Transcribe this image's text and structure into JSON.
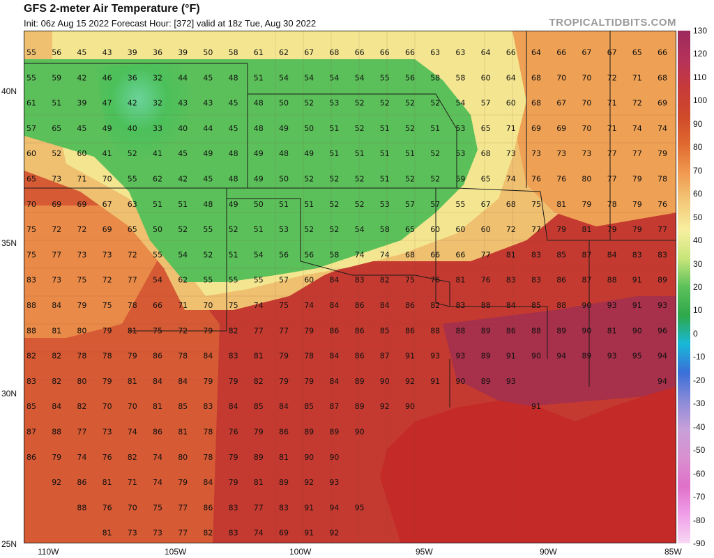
{
  "header": {
    "title": "GFS 2-meter Air Temperature (°F)",
    "subtitle": "Init: 06z Aug 15 2022   Forecast Hour: [372]   valid at 18z Tue, Aug 30 2022",
    "brand": "TROPICALTIDBITS.COM"
  },
  "axes": {
    "lat_labels": [
      "40N",
      "35N",
      "30N",
      "25N"
    ],
    "lon_labels": [
      "110W",
      "105W",
      "100W",
      "95W",
      "90W",
      "85W"
    ]
  },
  "colorbar": {
    "labels": [
      "130",
      "120",
      "110",
      "100",
      "90",
      "80",
      "70",
      "60",
      "50",
      "40",
      "30",
      "20",
      "10",
      "0",
      "-10",
      "-20",
      "-30",
      "-40",
      "-50",
      "-60",
      "-70",
      "-80",
      "-90"
    ],
    "stops": [
      "#9c2a5c",
      "#b5325a",
      "#c73a3a",
      "#cf4a2a",
      "#e06a30",
      "#f09a50",
      "#f3c878",
      "#f8efa0",
      "#c8e67a",
      "#5cc05a",
      "#2ea84a",
      "#18b8d8",
      "#3a6fd8",
      "#8a8ad8",
      "#c8a0d8",
      "#d890d0",
      "#e070c8",
      "#f0a0e8",
      "#f8d8f4"
    ]
  },
  "map": {
    "rows": [
      [
        "55",
        "56",
        "45",
        "43",
        "39",
        "36",
        "39",
        "50",
        "58",
        "61",
        "62",
        "67",
        "68",
        "66",
        "66",
        "66",
        "63",
        "63",
        "64",
        "66",
        "64",
        "66",
        "67",
        "67",
        "65",
        "66"
      ],
      [
        "55",
        "59",
        "42",
        "46",
        "36",
        "32",
        "44",
        "45",
        "48",
        "51",
        "54",
        "54",
        "54",
        "54",
        "55",
        "56",
        "58",
        "58",
        "60",
        "64",
        "68",
        "70",
        "70",
        "72",
        "71",
        "68"
      ],
      [
        "61",
        "51",
        "39",
        "47",
        "42",
        "32",
        "43",
        "43",
        "45",
        "48",
        "50",
        "52",
        "53",
        "52",
        "52",
        "52",
        "52",
        "54",
        "57",
        "60",
        "68",
        "67",
        "70",
        "71",
        "72",
        "69"
      ],
      [
        "57",
        "65",
        "45",
        "49",
        "40",
        "33",
        "40",
        "44",
        "45",
        "48",
        "49",
        "50",
        "51",
        "52",
        "51",
        "52",
        "51",
        "53",
        "65",
        "71",
        "69",
        "69",
        "70",
        "71",
        "74",
        "74"
      ],
      [
        "60",
        "52",
        "60",
        "41",
        "52",
        "41",
        "45",
        "49",
        "48",
        "49",
        "48",
        "49",
        "51",
        "51",
        "51",
        "51",
        "52",
        "53",
        "68",
        "73",
        "73",
        "73",
        "73",
        "77",
        "77",
        "79"
      ],
      [
        "65",
        "73",
        "71",
        "70",
        "55",
        "62",
        "42",
        "45",
        "48",
        "49",
        "50",
        "52",
        "52",
        "52",
        "51",
        "52",
        "52",
        "59",
        "65",
        "74",
        "76",
        "76",
        "80",
        "77",
        "79",
        "78"
      ],
      [
        "70",
        "69",
        "69",
        "67",
        "63",
        "51",
        "51",
        "48",
        "49",
        "50",
        "51",
        "51",
        "52",
        "52",
        "53",
        "57",
        "57",
        "55",
        "67",
        "68",
        "75",
        "81",
        "79",
        "78",
        "79",
        "76"
      ],
      [
        "75",
        "72",
        "72",
        "69",
        "65",
        "50",
        "52",
        "55",
        "52",
        "51",
        "53",
        "52",
        "52",
        "54",
        "58",
        "65",
        "60",
        "60",
        "60",
        "72",
        "77",
        "79",
        "81",
        "79",
        "79",
        "77"
      ],
      [
        "75",
        "77",
        "73",
        "73",
        "72",
        "55",
        "54",
        "52",
        "51",
        "54",
        "56",
        "56",
        "58",
        "74",
        "74",
        "68",
        "66",
        "66",
        "77",
        "81",
        "83",
        "85",
        "87",
        "84",
        "83",
        "83"
      ],
      [
        "83",
        "73",
        "75",
        "72",
        "77",
        "54",
        "62",
        "55",
        "55",
        "55",
        "57",
        "60",
        "84",
        "83",
        "82",
        "75",
        "76",
        "81",
        "76",
        "83",
        "83",
        "86",
        "87",
        "88",
        "91",
        "89"
      ],
      [
        "88",
        "84",
        "79",
        "75",
        "78",
        "66",
        "71",
        "70",
        "75",
        "74",
        "75",
        "74",
        "84",
        "86",
        "84",
        "86",
        "82",
        "83",
        "88",
        "84",
        "85",
        "88",
        "90",
        "93",
        "91",
        "93"
      ],
      [
        "88",
        "81",
        "80",
        "79",
        "81",
        "75",
        "72",
        "79",
        "82",
        "77",
        "77",
        "79",
        "86",
        "86",
        "85",
        "86",
        "88",
        "88",
        "89",
        "86",
        "88",
        "89",
        "90",
        "81",
        "90",
        "96"
      ],
      [
        "82",
        "82",
        "78",
        "78",
        "79",
        "86",
        "78",
        "84",
        "83",
        "81",
        "79",
        "78",
        "84",
        "86",
        "87",
        "91",
        "93",
        "93",
        "89",
        "91",
        "90",
        "94",
        "89",
        "93",
        "95",
        "94"
      ],
      [
        "83",
        "82",
        "80",
        "79",
        "81",
        "84",
        "84",
        "79",
        "79",
        "82",
        "79",
        "79",
        "84",
        "89",
        "90",
        "92",
        "91",
        "90",
        "89",
        "93",
        "",
        "",
        "",
        "",
        "",
        "94"
      ],
      [
        "85",
        "84",
        "82",
        "70",
        "70",
        "81",
        "85",
        "83",
        "84",
        "85",
        "84",
        "85",
        "87",
        "89",
        "92",
        "90",
        "",
        "",
        "",
        "",
        "91",
        "",
        "",
        "",
        "",
        ""
      ],
      [
        "87",
        "88",
        "77",
        "73",
        "74",
        "86",
        "81",
        "78",
        "76",
        "79",
        "86",
        "89",
        "89",
        "90",
        "",
        "",
        "",
        "",
        "",
        "",
        "",
        "",
        "",
        "",
        "",
        ""
      ],
      [
        "86",
        "79",
        "74",
        "76",
        "82",
        "74",
        "80",
        "78",
        "79",
        "89",
        "81",
        "90",
        "90",
        "",
        "",
        "",
        "",
        "",
        "",
        "",
        "",
        "",
        "",
        "",
        "",
        ""
      ],
      [
        "",
        "92",
        "86",
        "81",
        "71",
        "74",
        "79",
        "84",
        "79",
        "81",
        "89",
        "92",
        "93",
        "",
        "",
        "",
        "",
        "",
        "",
        "",
        "",
        "",
        "",
        "",
        "",
        ""
      ],
      [
        "",
        "",
        "88",
        "76",
        "70",
        "75",
        "77",
        "86",
        "83",
        "77",
        "83",
        "91",
        "94",
        "95",
        "",
        "",
        "",
        "",
        "",
        "",
        "",
        "",
        "",
        "",
        "",
        ""
      ],
      [
        "",
        "",
        "",
        "81",
        "73",
        "73",
        "77",
        "82",
        "83",
        "74",
        "69",
        "91",
        "92",
        "",
        "",
        "",
        "",
        "",
        "",
        "",
        "",
        "",
        "",
        "",
        "",
        ""
      ]
    ]
  }
}
